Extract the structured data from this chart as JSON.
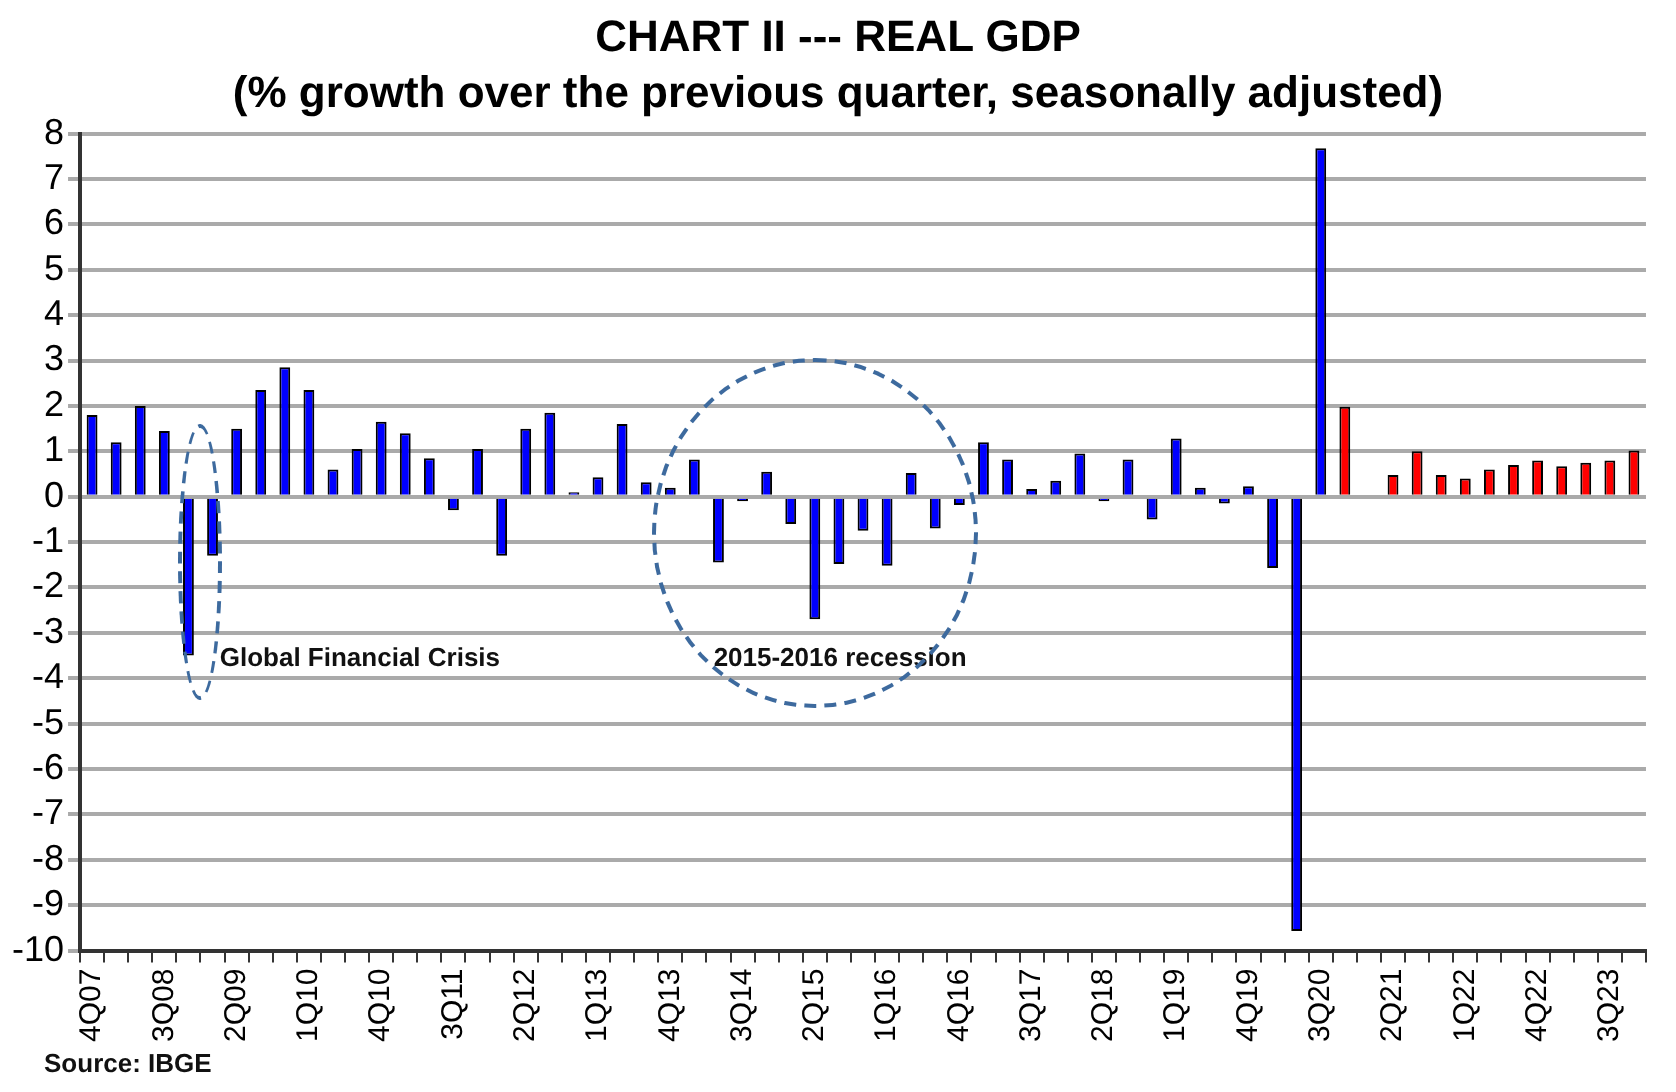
{
  "chart_data": {
    "type": "bar",
    "title": "CHART II --- REAL GDP",
    "subtitle": "(% growth over the previous quarter, seasonally adjusted)",
    "categories": [
      "4Q07",
      null,
      null,
      "3Q08",
      null,
      null,
      "2Q09",
      null,
      null,
      "1Q10",
      null,
      null,
      "4Q10",
      null,
      null,
      "3Q11",
      null,
      null,
      "2Q12",
      null,
      null,
      "1Q13",
      null,
      null,
      "4Q13",
      null,
      null,
      "3Q14",
      null,
      null,
      "2Q15",
      null,
      null,
      "1Q16",
      null,
      null,
      "4Q16",
      null,
      null,
      "3Q17",
      null,
      null,
      "2Q18",
      null,
      null,
      "1Q19",
      null,
      null,
      "4Q19",
      null,
      null,
      "3Q20",
      null,
      null,
      "2Q21",
      null,
      null,
      "1Q22",
      null,
      null,
      "4Q22",
      null,
      null,
      "3Q23",
      null
    ],
    "values": [
      1.8,
      1.2,
      2.0,
      1.45,
      -3.5,
      -1.3,
      1.5,
      2.35,
      2.85,
      2.35,
      0.6,
      1.05,
      1.65,
      1.4,
      0.85,
      -0.3,
      1.05,
      -1.3,
      1.5,
      1.85,
      0.1,
      0.43,
      1.6,
      0.32,
      0.2,
      0.82,
      -1.45,
      -0.1,
      0.55,
      -0.6,
      -2.7,
      -1.48,
      -0.75,
      -1.52,
      0.52,
      -0.7,
      -0.18,
      1.2,
      0.82,
      0.17,
      0.35,
      0.95,
      -0.1,
      0.82,
      -0.5,
      1.28,
      0.2,
      -0.15,
      0.23,
      -1.57,
      -9.57,
      7.68,
      1.98,
      null,
      0.48,
      1.0,
      0.48,
      0.4,
      0.6,
      0.7,
      0.8,
      0.67,
      0.75,
      0.8,
      1.02
    ],
    "colors": [
      "#0000ff",
      "#0000ff",
      "#0000ff",
      "#0000ff",
      "#0000ff",
      "#0000ff",
      "#0000ff",
      "#0000ff",
      "#0000ff",
      "#0000ff",
      "#0000ff",
      "#0000ff",
      "#0000ff",
      "#0000ff",
      "#0000ff",
      "#0000ff",
      "#0000ff",
      "#0000ff",
      "#0000ff",
      "#0000ff",
      "#0000ff",
      "#0000ff",
      "#0000ff",
      "#0000ff",
      "#0000ff",
      "#0000ff",
      "#0000ff",
      "#0000ff",
      "#0000ff",
      "#0000ff",
      "#0000ff",
      "#0000ff",
      "#0000ff",
      "#0000ff",
      "#0000ff",
      "#0000ff",
      "#0000ff",
      "#0000ff",
      "#0000ff",
      "#0000ff",
      "#0000ff",
      "#0000ff",
      "#0000ff",
      "#0000ff",
      "#0000ff",
      "#0000ff",
      "#0000ff",
      "#0000ff",
      "#0000ff",
      "#0000ff",
      "#0000ff",
      "#0000ff",
      "#ff0000",
      "#ff0000",
      "#ff0000",
      "#ff0000",
      "#ff0000",
      "#ff0000",
      "#ff0000",
      "#ff0000",
      "#ff0000",
      "#ff0000",
      "#ff0000",
      "#ff0000",
      "#ff0000"
    ],
    "ylim": [
      -10,
      8
    ],
    "yticks": [
      -10,
      -9,
      -8,
      -7,
      -6,
      -5,
      -4,
      -3,
      -2,
      -1,
      0,
      1,
      2,
      3,
      4,
      5,
      6,
      7,
      8
    ],
    "grid": "y",
    "legend": false,
    "annotations": [
      "Global Financial Crisis",
      "2015-2016 recession",
      "Source: IBGE"
    ]
  }
}
